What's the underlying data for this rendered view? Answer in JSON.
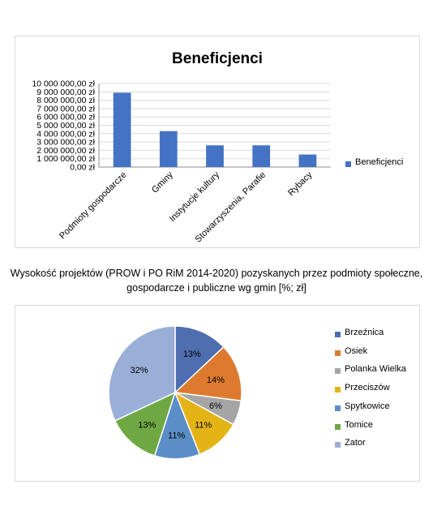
{
  "chart_data": [
    {
      "type": "bar",
      "title": "Beneficjenci",
      "categories": [
        "Podmioty gospodarcze",
        "Gminy",
        "Instytucje kultury",
        "Stowarzyszenia, Parafie",
        "Rybacy"
      ],
      "series": [
        {
          "name": "Beneficjenci",
          "color": "#4472c4",
          "values": [
            8900000,
            4300000,
            2600000,
            2600000,
            1500000
          ]
        }
      ],
      "yticks": [
        "0,00 zł",
        "1 000 000,00 zł",
        "2 000 000,00 zł",
        "3 000 000,00 zł",
        "4 000 000,00 zł",
        "5 000 000,00 zł",
        "6 000 000,00 zł",
        "7 000 000,00 zł",
        "8 000 000,00 zł",
        "9 000 000,00 zł",
        "10 000 000,00 zł"
      ],
      "ylim": [
        0,
        10000000
      ],
      "grid": true,
      "legend": "right"
    },
    {
      "type": "pie",
      "title": "Wysokość projektów (PROW i PO RiM 2014-2020) pozyskanych przez podmioty społeczne, gospodarcze i publiczne wg gmin [%; zł]",
      "title_lines": [
        "Wysokość projektów (PROW i PO RiM 2014-2020) pozyskanych przez podmioty społeczne,",
        "gospodarcze i publiczne wg gmin [%; zł]"
      ],
      "legend": "right",
      "slices": [
        {
          "label": "Brzeźnica",
          "value": 13,
          "value_label": "13%",
          "color": "#4f6eaf"
        },
        {
          "label": "Osiek",
          "value": 14,
          "value_label": "14%",
          "color": "#dd7a2f"
        },
        {
          "label": "Polanka Wielka",
          "value": 6,
          "value_label": "6%",
          "color": "#a5a5a5"
        },
        {
          "label": "Przeciszów",
          "value": 11,
          "value_label": "11%",
          "color": "#e4b417"
        },
        {
          "label": "Spytkowice",
          "value": 11,
          "value_label": "11%",
          "color": "#5b8ec6"
        },
        {
          "label": "Tomice",
          "value": 13,
          "value_label": "13%",
          "color": "#6fa843"
        },
        {
          "label": "Zator",
          "value": 32,
          "value_label": "32%",
          "color": "#9aafd8"
        }
      ]
    }
  ]
}
